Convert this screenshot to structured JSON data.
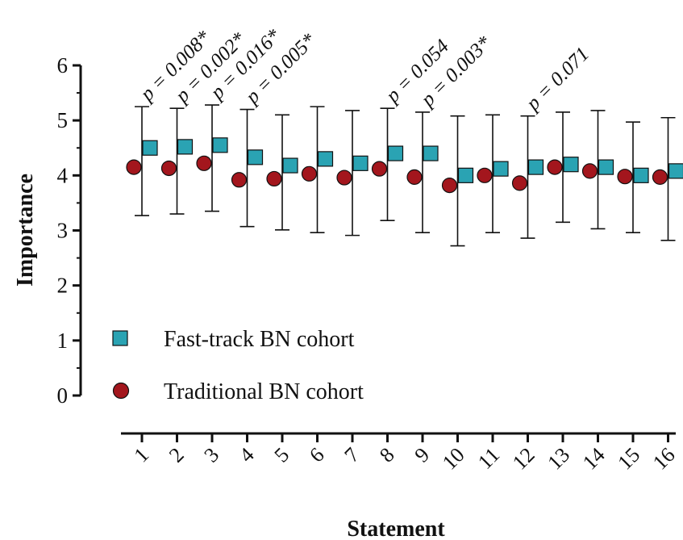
{
  "chart_data": {
    "type": "scatter",
    "xlabel": "Statement",
    "ylabel": "Importance",
    "ylim": [
      0,
      6
    ],
    "yticks": [
      0,
      1,
      2,
      3,
      4,
      5,
      6
    ],
    "categories": [
      "1",
      "2",
      "3",
      "4",
      "5",
      "6",
      "7",
      "8",
      "9",
      "10",
      "11",
      "12",
      "13",
      "14",
      "15",
      "16"
    ],
    "legend_position": "bottom-left",
    "series": [
      {
        "name": "Fast-track BN cohort",
        "marker": "square",
        "color": "#2aa3b3",
        "values": [
          4.5,
          4.52,
          4.55,
          4.33,
          4.18,
          4.3,
          4.22,
          4.4,
          4.4,
          4.0,
          4.12,
          4.15,
          4.2,
          4.15,
          4.0,
          4.08
        ],
        "error_upper": [
          5.25,
          5.22,
          5.28,
          5.2,
          5.1,
          5.25,
          5.18,
          5.22,
          5.15,
          5.08,
          5.1,
          5.08,
          5.15,
          5.18,
          4.97,
          5.05
        ]
      },
      {
        "name": "Traditional BN cohort",
        "marker": "circle",
        "color": "#a3161d",
        "values": [
          4.15,
          4.13,
          4.22,
          3.92,
          3.94,
          4.03,
          3.96,
          4.12,
          3.97,
          3.82,
          4.0,
          3.86,
          4.15,
          4.08,
          3.98,
          3.97
        ],
        "error_lower": [
          3.27,
          3.3,
          3.35,
          3.07,
          3.01,
          2.96,
          2.91,
          3.18,
          2.96,
          2.72,
          2.96,
          2.86,
          3.15,
          3.03,
          2.96,
          2.82
        ]
      }
    ],
    "annotations": [
      {
        "statement": 1,
        "text": "p = 0.008*"
      },
      {
        "statement": 2,
        "text": "p = 0.002*"
      },
      {
        "statement": 3,
        "text": "p = 0.016*"
      },
      {
        "statement": 4,
        "text": "p = 0.005*"
      },
      {
        "statement": 8,
        "text": "p = 0.054"
      },
      {
        "statement": 9,
        "text": "p = 0.003*"
      },
      {
        "statement": 12,
        "text": "p = 0.071"
      }
    ]
  }
}
